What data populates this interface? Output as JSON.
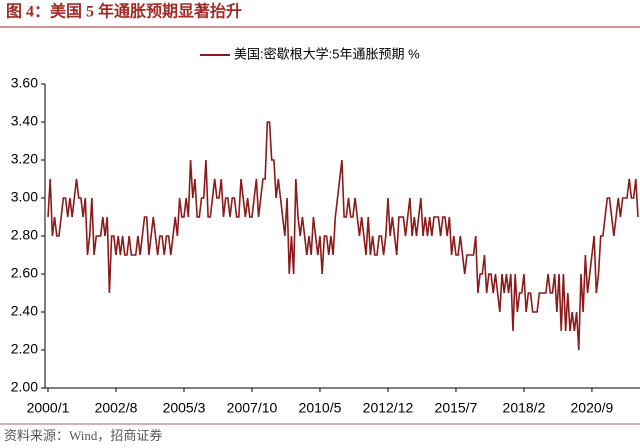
{
  "chart_data": {
    "type": "line",
    "title": "图 4：美国 5 年通胀预期显著抬升",
    "source": "资料来源：Wind，招商证券",
    "categories": [
      "2000/1",
      null,
      null,
      null,
      null,
      null,
      null,
      null,
      null,
      null,
      null,
      null,
      null,
      null,
      null,
      null,
      null,
      null,
      null,
      null,
      null,
      null,
      null,
      null,
      null,
      null,
      null,
      null,
      null,
      null,
      null,
      "2002/8",
      null,
      null,
      null,
      null,
      null,
      null,
      null,
      null,
      null,
      null,
      null,
      null,
      null,
      null,
      null,
      null,
      null,
      null,
      null,
      null,
      null,
      null,
      null,
      null,
      null,
      null,
      null,
      null,
      null,
      null,
      "2005/3",
      null,
      null,
      null,
      null,
      null,
      null,
      null,
      null,
      null,
      null,
      null,
      null,
      null,
      null,
      null,
      null,
      null,
      null,
      null,
      null,
      null,
      null,
      null,
      null,
      null,
      null,
      null,
      null,
      null,
      null,
      "2007/10",
      null,
      null,
      null,
      null,
      null,
      null,
      null,
      null,
      null,
      null,
      null,
      null,
      null,
      null,
      null,
      null,
      null,
      null,
      null,
      null,
      null,
      null,
      null,
      null,
      null,
      null,
      null,
      null,
      null,
      null,
      "2010/5",
      null,
      null,
      null,
      null,
      null,
      null,
      null,
      null,
      null,
      null,
      null,
      null,
      null,
      null,
      null,
      null,
      null,
      null,
      null,
      null,
      null,
      null,
      null,
      null,
      null,
      null,
      null,
      null,
      null,
      null,
      "2012/12",
      null,
      null,
      null,
      null,
      null,
      null,
      null,
      null,
      null,
      null,
      null,
      null,
      null,
      null,
      null,
      null,
      null,
      null,
      null,
      null,
      null,
      null,
      null,
      null,
      null,
      null,
      null,
      null,
      null,
      null,
      "2015/7",
      null,
      null,
      null,
      null,
      null,
      null,
      null,
      null,
      null,
      null,
      null,
      null,
      null,
      null,
      null,
      null,
      null,
      null,
      null,
      null,
      null,
      null,
      null,
      null,
      null,
      null,
      null,
      null,
      null,
      null,
      "2018/2",
      null,
      null,
      null,
      null,
      null,
      null,
      null,
      null,
      null,
      null,
      null,
      null,
      null,
      null,
      null,
      null,
      null,
      null,
      null,
      null,
      null,
      null,
      null,
      null,
      null,
      null,
      null,
      null,
      null,
      null,
      "2020/9",
      null,
      null,
      null,
      null,
      null,
      null,
      null,
      null,
      null,
      null,
      null,
      null,
      null,
      null,
      null,
      null,
      null,
      null,
      null,
      null,
      null
    ],
    "series": [
      {
        "name": "美国:密歇根大学:5年通胀预期 %",
        "color": "#8b1a1a",
        "values": [
          2.9,
          3.1,
          2.8,
          2.9,
          2.8,
          2.8,
          2.9,
          3.0,
          3.0,
          2.9,
          3.0,
          2.9,
          3.0,
          3.1,
          3.0,
          3.0,
          2.9,
          3.0,
          2.7,
          2.8,
          3.0,
          2.7,
          2.8,
          2.8,
          2.8,
          2.9,
          2.8,
          2.9,
          2.5,
          2.8,
          2.8,
          2.7,
          2.8,
          2.7,
          2.8,
          2.7,
          2.7,
          2.8,
          2.7,
          2.7,
          2.7,
          2.8,
          2.7,
          2.8,
          2.9,
          2.9,
          2.7,
          2.8,
          2.9,
          2.8,
          2.7,
          2.8,
          2.8,
          2.7,
          2.8,
          2.8,
          2.7,
          2.8,
          2.9,
          2.8,
          3.0,
          2.9,
          2.9,
          3.0,
          2.9,
          3.2,
          3.0,
          3.1,
          2.9,
          2.9,
          3.0,
          3.0,
          3.2,
          2.9,
          2.9,
          3.0,
          3.1,
          3.0,
          3.0,
          3.1,
          2.9,
          3.0,
          3.0,
          2.9,
          3.0,
          3.0,
          2.9,
          2.9,
          3.1,
          3.0,
          2.9,
          3.0,
          2.9,
          2.9,
          3.0,
          3.1,
          2.9,
          3.0,
          3.1,
          3.1,
          3.4,
          3.4,
          3.2,
          3.2,
          3.0,
          3.1,
          3.0,
          2.9,
          2.8,
          3.0,
          2.6,
          2.8,
          2.6,
          3.1,
          2.9,
          2.8,
          2.9,
          2.8,
          2.7,
          2.8,
          2.7,
          2.9,
          2.8,
          2.7,
          2.8,
          2.6,
          2.8,
          2.8,
          2.7,
          2.8,
          2.7,
          2.9,
          3.0,
          3.1,
          3.2,
          2.9,
          2.9,
          3.0,
          2.9,
          2.9,
          3.0,
          2.9,
          2.8,
          2.9,
          2.8,
          2.7,
          2.9,
          2.7,
          2.8,
          2.7,
          2.7,
          2.8,
          2.8,
          2.7,
          2.8,
          3.0,
          2.8,
          2.9,
          2.8,
          2.7,
          2.9,
          2.9,
          2.9,
          2.8,
          2.9,
          3.0,
          2.8,
          2.9,
          2.8,
          2.9,
          3.0,
          2.8,
          2.9,
          2.8,
          2.9,
          2.8,
          2.9,
          2.9,
          2.9,
          2.8,
          2.9,
          2.9,
          2.8,
          2.9,
          2.7,
          2.8,
          2.7,
          2.7,
          2.8,
          2.7,
          2.6,
          2.7,
          2.7,
          2.7,
          2.7,
          2.8,
          2.5,
          2.6,
          2.6,
          2.7,
          2.5,
          2.6,
          2.6,
          2.5,
          2.6,
          2.5,
          2.4,
          2.6,
          2.5,
          2.6,
          2.5,
          2.6,
          2.3,
          2.6,
          2.4,
          2.5,
          2.5,
          2.6,
          2.4,
          2.5,
          2.5,
          2.4,
          2.4,
          2.4,
          2.5,
          2.5,
          2.5,
          2.5,
          2.6,
          2.5,
          2.5,
          2.6,
          2.4,
          2.6,
          2.3,
          2.6,
          2.3,
          2.5,
          2.3,
          2.4,
          2.3,
          2.4,
          2.2,
          2.6,
          2.4,
          2.7,
          2.5,
          2.6,
          2.7,
          2.8,
          2.5,
          2.6,
          2.8,
          2.8,
          2.9,
          3.0,
          3.0,
          2.9,
          2.8,
          2.9,
          3.0,
          2.9,
          3.0,
          3.0,
          3.0,
          3.1,
          3.0,
          3.0,
          3.1,
          2.9
        ]
      }
    ],
    "ylim": [
      2.0,
      3.6
    ],
    "yticks": [
      {
        "value": 2.0,
        "label": "2.00"
      },
      {
        "value": 2.2,
        "label": "2.20"
      },
      {
        "value": 2.4,
        "label": "2.40"
      },
      {
        "value": 2.6,
        "label": "2.60"
      },
      {
        "value": 2.8,
        "label": "2.80"
      },
      {
        "value": 3.0,
        "label": "3.00"
      },
      {
        "value": 3.2,
        "label": "3.20"
      },
      {
        "value": 3.4,
        "label": "3.40"
      },
      {
        "value": 3.6,
        "label": "3.60"
      }
    ],
    "grid": false
  }
}
